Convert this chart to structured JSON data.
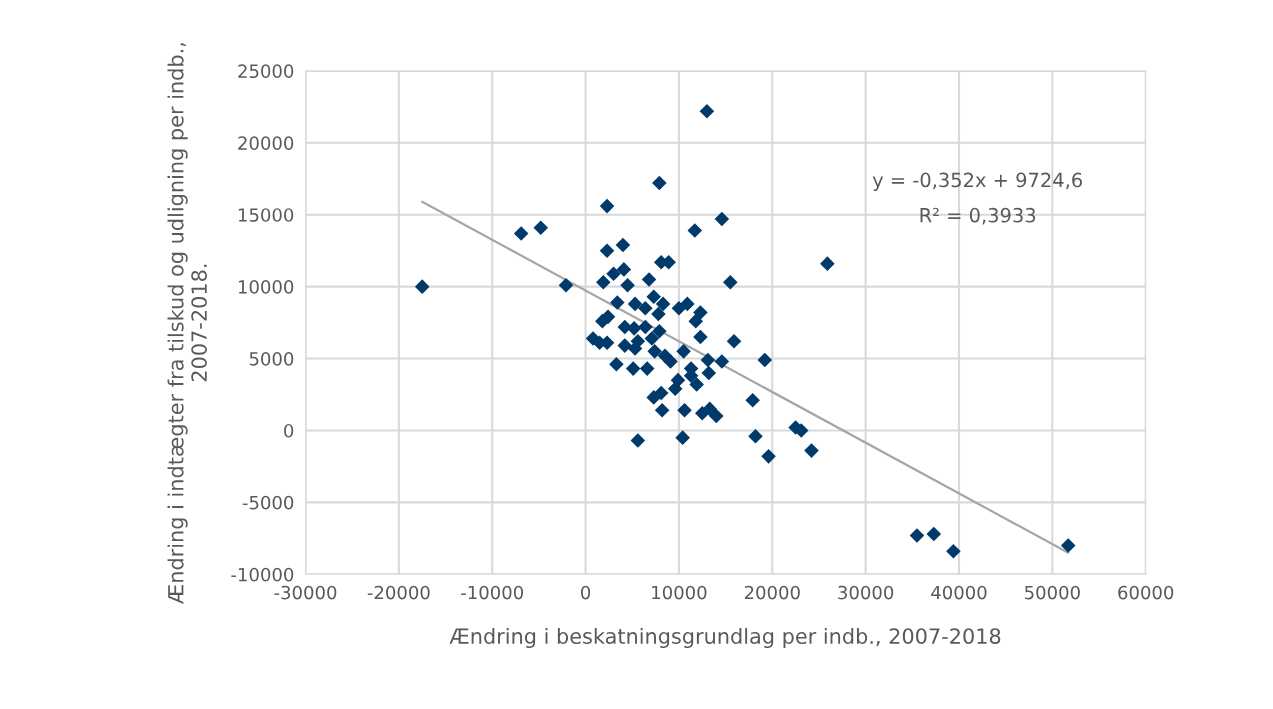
{
  "chart_data": {
    "type": "scatter",
    "xlabel": "Ændring i beskatningsgrundlag per indb., 2007-2018",
    "ylabel": "Ændring i indtægter fra tilskud og udligning per indb., 2007-2018.",
    "xlim": [
      -30000,
      60000
    ],
    "xticks": [
      -30000,
      -20000,
      -10000,
      0,
      10000,
      20000,
      30000,
      40000,
      50000,
      60000
    ],
    "ylim": [
      -10000,
      25000
    ],
    "yticks": [
      -10000,
      -5000,
      0,
      5000,
      10000,
      15000,
      20000,
      25000
    ],
    "grid": true,
    "legend": false,
    "annotations": [
      "y = -0,352x + 9724,6",
      "R² = 0,3933"
    ],
    "series": [
      {
        "marker": "diamond",
        "color": "#003a6b",
        "x": [
          -17500,
          -6900,
          -4800,
          -2100,
          13000,
          7900,
          2300,
          14600,
          11700,
          4000,
          2300,
          25900,
          8100,
          8900,
          4100,
          3000,
          1900,
          4500,
          15500,
          6800,
          3400,
          2400,
          1800,
          5300,
          6400,
          7300,
          7800,
          10000,
          10900,
          8300,
          11800,
          12300,
          4200,
          5200,
          6400,
          7100,
          7900,
          800,
          1500,
          2300,
          5600,
          5300,
          4200,
          7400,
          8500,
          9100,
          10500,
          12300,
          13100,
          14600,
          15900,
          19200,
          3300,
          5100,
          6600,
          11300,
          11900,
          11300,
          9900,
          9600,
          8100,
          7300,
          8200,
          10600,
          12500,
          13300,
          14000,
          13200,
          17900,
          22500,
          23100,
          18200,
          10400,
          5600,
          19600,
          24200,
          35500,
          37300,
          39400,
          51700
        ],
        "values": [
          10000,
          13700,
          14100,
          10100,
          22200,
          17200,
          15600,
          14700,
          13900,
          12900,
          12500,
          11600,
          11700,
          11700,
          11200,
          10900,
          10300,
          10100,
          10300,
          10500,
          8900,
          7900,
          7600,
          8800,
          8500,
          9300,
          8100,
          8500,
          8800,
          8800,
          7600,
          8200,
          7200,
          7100,
          7200,
          6400,
          6900,
          6400,
          6100,
          6100,
          6200,
          5700,
          5900,
          5500,
          5200,
          4800,
          5500,
          6500,
          4900,
          4800,
          6200,
          4900,
          4600,
          4300,
          4300,
          4300,
          3200,
          3800,
          3500,
          2900,
          2600,
          2300,
          1400,
          1400,
          1200,
          1500,
          1000,
          4000,
          2100,
          200,
          0,
          -400,
          -500,
          -700,
          -1800,
          -1400,
          -7300,
          -7200,
          -8400,
          -8000
        ]
      },
      {
        "type": "line",
        "color": "#a6a6a6",
        "x": [
          -17500,
          51700
        ],
        "values": [
          15900,
          -8500
        ]
      }
    ]
  }
}
